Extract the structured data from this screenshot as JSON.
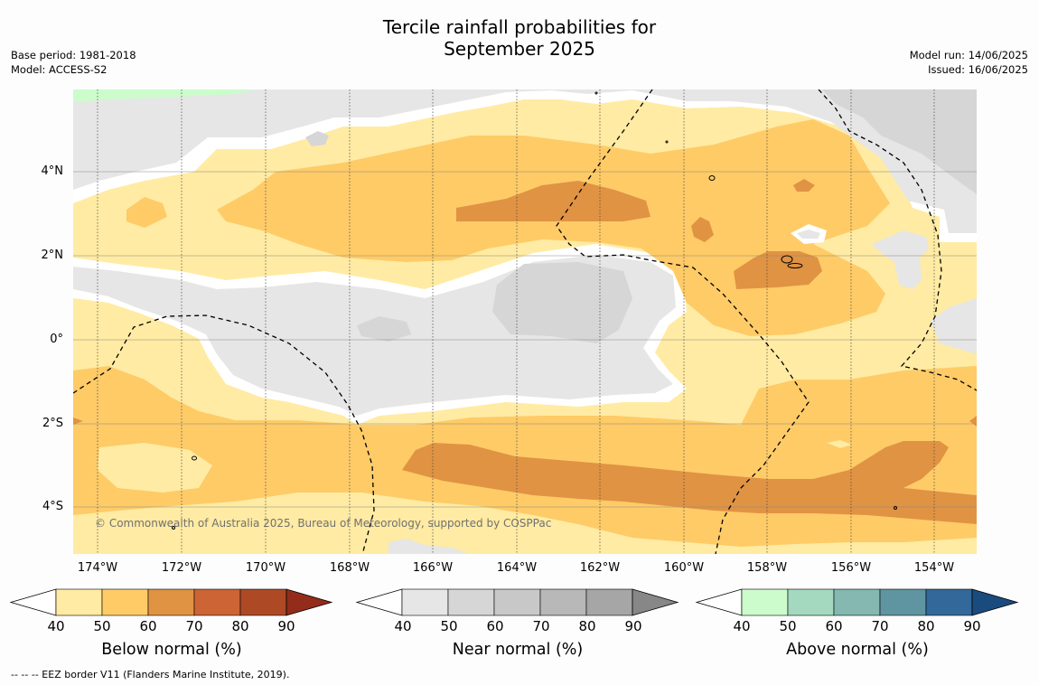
{
  "title_line1": "Tercile rainfall probabilities for",
  "title_line2": "September 2025",
  "meta_left": [
    "Base period: 1981-2018",
    "Model: ACCESS-S2"
  ],
  "meta_right": [
    "Model run: 14/06/2025",
    "Issued: 16/06/2025"
  ],
  "y_ticks": [
    "4°N",
    "2°N",
    "0°",
    "2°S",
    "4°S"
  ],
  "x_ticks": [
    "174°W",
    "172°W",
    "170°W",
    "168°W",
    "166°W",
    "164°W",
    "162°W",
    "160°W",
    "158°W",
    "156°W",
    "154°W"
  ],
  "copyright": "© Commonwealth of Australia 2025, Bureau of Meteorology, supported by COSPPac",
  "footnote": "--  --  -- EEZ border V11 (Flanders Marine Institute, 2019).",
  "colors": {
    "below": [
      "#ffeba3",
      "#fecb67",
      "#e09343",
      "#cc6435",
      "#ad4a25",
      "#932c1b"
    ],
    "near": [
      "#e6e6e6",
      "#d6d6d6",
      "#c8c8c8",
      "#b8b8b8",
      "#a6a6a6",
      "#878787"
    ],
    "above": [
      "#ccfccb",
      "#a5d9bf",
      "#84b8b0",
      "#5e95a0",
      "#33689a",
      "#194b7e"
    ],
    "green_patch": "#ccfccb"
  },
  "colorbars": [
    {
      "title": "Below normal (%)",
      "ticks": [
        "40",
        "50",
        "60",
        "70",
        "80",
        "90"
      ],
      "palette": "below"
    },
    {
      "title": "Near normal (%)",
      "ticks": [
        "40",
        "50",
        "60",
        "70",
        "80",
        "90"
      ],
      "palette": "near"
    },
    {
      "title": "Above normal (%)",
      "ticks": [
        "40",
        "50",
        "60",
        "70",
        "80",
        "90"
      ],
      "palette": "above"
    }
  ]
}
